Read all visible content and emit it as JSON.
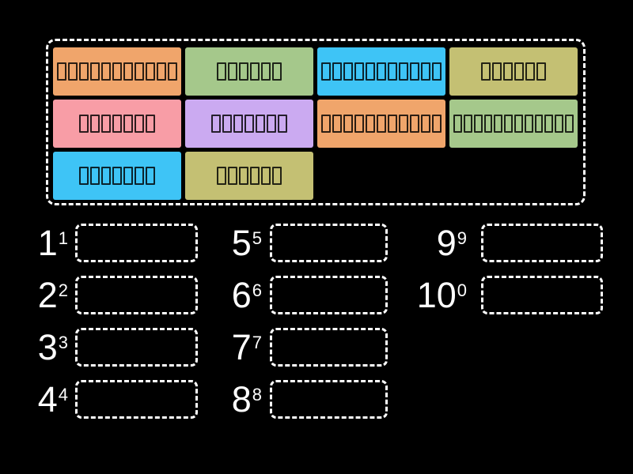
{
  "activity": {
    "background_color": "#000000",
    "dash_border_color": "#ffffff",
    "bank": {
      "tiles": [
        {
          "color": "#F0A56B",
          "glyph_count": 11
        },
        {
          "color": "#A5C88B",
          "glyph_count": 6
        },
        {
          "color": "#3EC4F6",
          "glyph_count": 11
        },
        {
          "color": "#C4C073",
          "glyph_count": 6
        },
        {
          "color": "#F89DA6",
          "glyph_count": 7
        },
        {
          "color": "#CBAAF1",
          "glyph_count": 7
        },
        {
          "color": "#F0A56B",
          "glyph_count": 11
        },
        {
          "color": "#A5C88B",
          "glyph_count": 12
        },
        {
          "color": "#3EC4F6",
          "glyph_count": 7
        },
        {
          "color": "#C4C073",
          "glyph_count": 6
        }
      ]
    },
    "board": {
      "columns": [
        {
          "items": [
            {
              "base": "1",
              "exp": "1"
            },
            {
              "base": "2",
              "exp": "2"
            },
            {
              "base": "3",
              "exp": "3"
            },
            {
              "base": "4",
              "exp": "4"
            }
          ]
        },
        {
          "items": [
            {
              "base": "5",
              "exp": "5"
            },
            {
              "base": "6",
              "exp": "6"
            },
            {
              "base": "7",
              "exp": "7"
            },
            {
              "base": "8",
              "exp": "8"
            }
          ]
        },
        {
          "items": [
            {
              "base": "9",
              "exp": "9"
            },
            {
              "base": "10",
              "exp": "0"
            }
          ]
        }
      ]
    }
  }
}
